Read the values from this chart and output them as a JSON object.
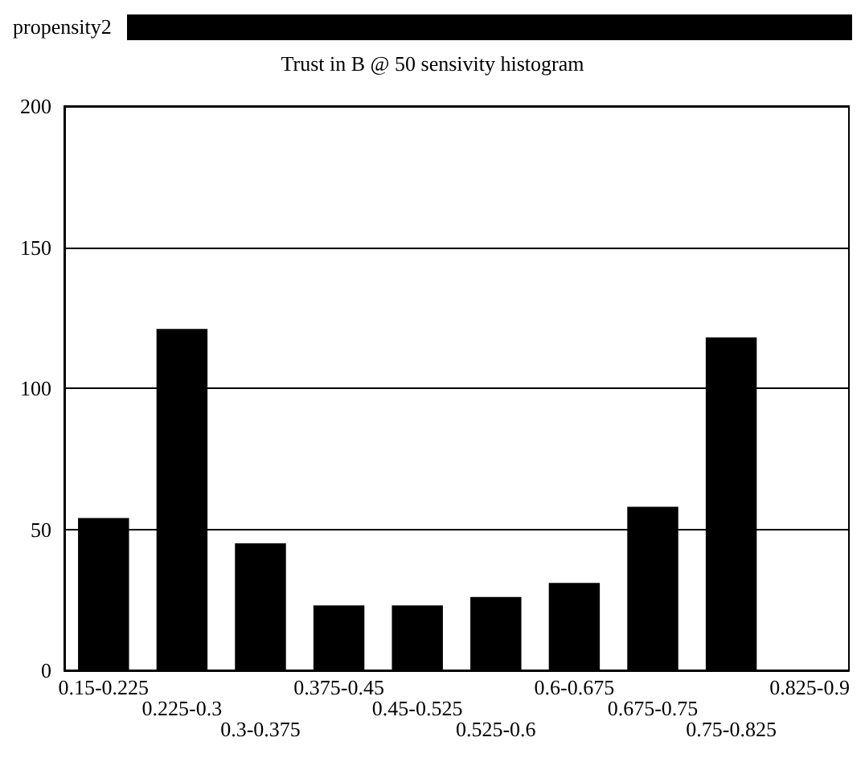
{
  "chart_data": {
    "type": "bar",
    "title": "Trust in B @ 50 sensivity histogram",
    "annotations": [
      "propensity2"
    ],
    "categories": [
      "0.15-0.225",
      "0.225-0.3",
      "0.3-0.375",
      "0.375-0.45",
      "0.45-0.525",
      "0.525-0.6",
      "0.6-0.675",
      "0.675-0.75",
      "0.75-0.825",
      "0.825-0.9"
    ],
    "values": [
      54,
      121,
      45,
      23,
      23,
      26,
      31,
      58,
      118,
      0
    ],
    "color": "#000000",
    "ylim": [
      0,
      200
    ],
    "yticks": [
      0,
      50,
      100,
      150,
      200
    ],
    "grid": "y"
  }
}
